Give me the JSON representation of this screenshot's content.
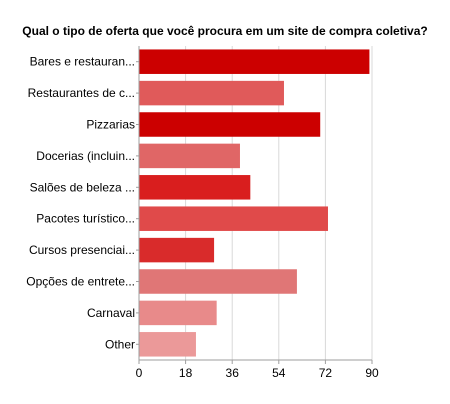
{
  "chart_data": {
    "type": "bar",
    "orientation": "horizontal",
    "title": "Qual o tipo de oferta que você procura em um site de compra coletiva?",
    "categories": [
      "Bares e restauran...",
      "Restaurantes de c...",
      "Pizzarias",
      "Docerias (incluin...",
      "Salões de beleza ...",
      "Pacotes turístico...",
      "Cursos presenciai...",
      "Opções de entrete...",
      "Carnaval",
      "Other"
    ],
    "values": [
      89,
      56,
      70,
      39,
      43,
      73,
      29,
      61,
      30,
      22
    ],
    "colors": [
      "#cc0000",
      "#e05a5a",
      "#cc0000",
      "#e06666",
      "#d91e1e",
      "#e04a4a",
      "#d92b2b",
      "#e07676",
      "#e88a8a",
      "#eb9999"
    ],
    "xlim": [
      0,
      90
    ],
    "xticks": [
      "0",
      "18",
      "36",
      "54",
      "72",
      "90"
    ],
    "xlabel": "",
    "ylabel": "",
    "grid": true
  }
}
